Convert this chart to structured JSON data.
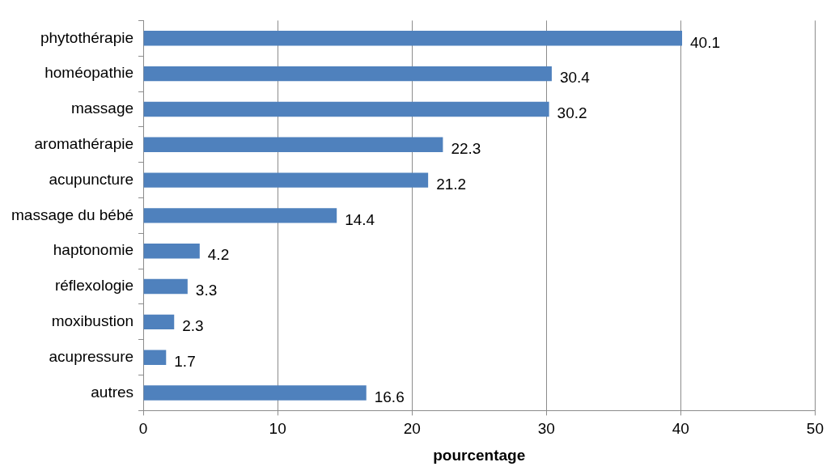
{
  "chart_data": {
    "type": "bar",
    "orientation": "horizontal",
    "xlabel": "pourcentage",
    "categories": [
      "phytothérapie",
      "homéopathie",
      "massage",
      "aromathérapie",
      "acupuncture",
      "massage du bébé",
      "haptonomie",
      "réflexologie",
      "moxibustion",
      "acupressure",
      "autres"
    ],
    "values": [
      40.1,
      30.4,
      30.2,
      22.3,
      21.2,
      14.4,
      4.2,
      3.3,
      2.3,
      1.7,
      16.6
    ],
    "color": "#4f81bd",
    "xlim": [
      0,
      50
    ],
    "xticks": [
      0,
      10,
      20,
      30,
      40,
      50
    ],
    "grid": "x",
    "data_labels": true
  }
}
